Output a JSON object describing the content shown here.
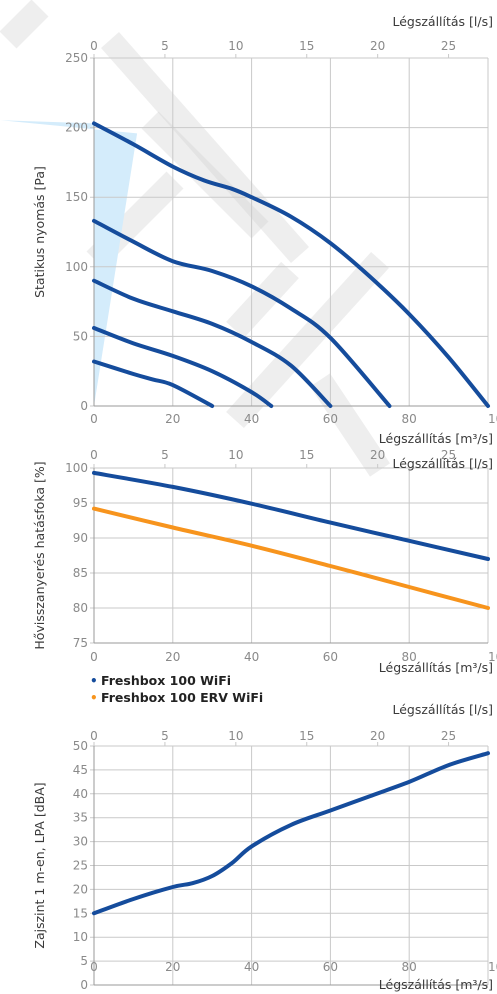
{
  "chart_data": [
    {
      "type": "line",
      "title": "",
      "xlabel": "Légszállítás [m³/s]",
      "x2label": "Légszállítás [l/s]",
      "ylabel": "Statikus nyomás [Pa]",
      "xlim": [
        0,
        100
      ],
      "x2lim": [
        0,
        27.78
      ],
      "ylim": [
        0,
        250
      ],
      "xticks": [
        0,
        20,
        40,
        60,
        80,
        100
      ],
      "x2ticks": [
        0,
        5,
        10,
        15,
        20,
        25
      ],
      "yticks": [
        0,
        50,
        100,
        150,
        200,
        250
      ],
      "grid": true,
      "shaded_region": true,
      "colors": {
        "line": "#154c9c",
        "fill": "#d4ecfb",
        "grid": "#c9c9c9"
      },
      "series": [
        {
          "x": [
            0,
            10,
            20,
            28,
            35,
            40,
            50,
            60,
            70,
            80,
            90,
            100
          ],
          "y": [
            203,
            188,
            172,
            162,
            156,
            150,
            136,
            117,
            93,
            66,
            35,
            0
          ]
        },
        {
          "x": [
            0,
            10,
            20,
            30,
            40,
            50,
            60,
            75
          ],
          "y": [
            133,
            118,
            104,
            97,
            86,
            70,
            49,
            0
          ]
        },
        {
          "x": [
            0,
            10,
            20,
            30,
            40,
            50,
            60
          ],
          "y": [
            90,
            77,
            68,
            59,
            46,
            29,
            0
          ]
        },
        {
          "x": [
            0,
            10,
            20,
            30,
            40,
            45
          ],
          "y": [
            56,
            45,
            36,
            25,
            10,
            0
          ]
        },
        {
          "x": [
            0,
            10,
            15,
            20,
            30
          ],
          "y": [
            32,
            23,
            19,
            15,
            0
          ]
        }
      ]
    },
    {
      "type": "line",
      "title": "",
      "xlabel": "Légszállítás [m³/s]",
      "x2label": "Légszállítás [l/s]",
      "ylabel": "Hővisszanyerés hatásfoka [%]",
      "xlim": [
        0,
        100
      ],
      "x2lim": [
        0,
        27.78
      ],
      "ylim": [
        75,
        100
      ],
      "xticks": [
        0,
        20,
        40,
        60,
        80,
        100
      ],
      "x2ticks": [
        0,
        5,
        10,
        15,
        20,
        25
      ],
      "yticks": [
        75,
        80,
        85,
        90,
        95,
        100
      ],
      "grid": true,
      "legend": "bottom-left",
      "series": [
        {
          "name": "Freshbox 100 WiFi",
          "color": "#154c9c",
          "x": [
            0,
            20,
            40,
            60,
            80,
            100
          ],
          "y": [
            99.3,
            97.3,
            94.9,
            92.2,
            89.6,
            87.0
          ]
        },
        {
          "name": "Freshbox 100 ERV WiFi",
          "color": "#f7941d",
          "x": [
            0,
            20,
            40,
            60,
            80,
            100
          ],
          "y": [
            94.2,
            91.5,
            88.9,
            86.0,
            83.0,
            80.0
          ]
        }
      ]
    },
    {
      "type": "line",
      "title": "",
      "xlabel": "Légszállítás [m³/s]",
      "x2label": "Légszállítás [l/s]",
      "ylabel": "Zajszint 1 m-en, LPA [dBA]",
      "xlim": [
        0,
        100
      ],
      "x2lim": [
        0,
        27.78
      ],
      "ylim": [
        0,
        50
      ],
      "xticks": [
        0,
        20,
        40,
        60,
        80,
        100
      ],
      "x2ticks": [
        0,
        5,
        10,
        15,
        20,
        25
      ],
      "yticks": [
        0,
        5,
        10,
        15,
        20,
        25,
        30,
        35,
        40,
        45,
        50
      ],
      "grid": true,
      "series": [
        {
          "color": "#154c9c",
          "x": [
            0,
            10,
            20,
            25,
            30,
            35,
            40,
            50,
            60,
            70,
            80,
            90,
            100
          ],
          "y": [
            15,
            18,
            20.5,
            21.3,
            22.8,
            25.5,
            29,
            33.5,
            36.5,
            39.5,
            42.5,
            46,
            48.5
          ]
        }
      ]
    }
  ]
}
